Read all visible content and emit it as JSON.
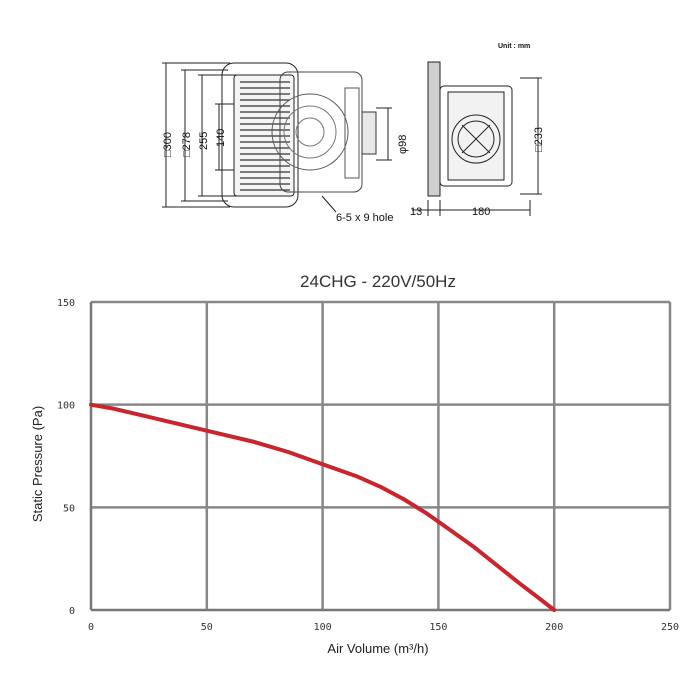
{
  "drawing": {
    "unit_label": "Unit : mm",
    "dims": {
      "d300": "□300",
      "d278": "□278",
      "d255": "255",
      "d140": "140",
      "d98": "φ98",
      "d233": "□233",
      "d13": "13",
      "d180": "180",
      "hole": "6-5 x 9 hole"
    }
  },
  "chart_data": {
    "type": "line",
    "title": "24CHG - 220V/50Hz",
    "xlabel": "Air Volume (m³/h)",
    "ylabel": "Static Pressure (Pa)",
    "xlim": [
      0,
      250
    ],
    "ylim": [
      0,
      150
    ],
    "xticks": [
      0,
      50,
      100,
      150,
      200,
      250
    ],
    "yticks": [
      0,
      50,
      100,
      150
    ],
    "grid": true,
    "line_color": "#c8262c",
    "grid_color": "#888888",
    "series": [
      {
        "x": [
          0,
          10,
          25,
          40,
          55,
          70,
          85,
          100,
          115,
          125,
          135,
          145,
          155,
          165,
          175,
          185,
          192,
          200
        ],
        "y": [
          100,
          98,
          94,
          90,
          86,
          82,
          77,
          71,
          65,
          60,
          54,
          47,
          39,
          31,
          22,
          13,
          7,
          0
        ]
      }
    ]
  }
}
